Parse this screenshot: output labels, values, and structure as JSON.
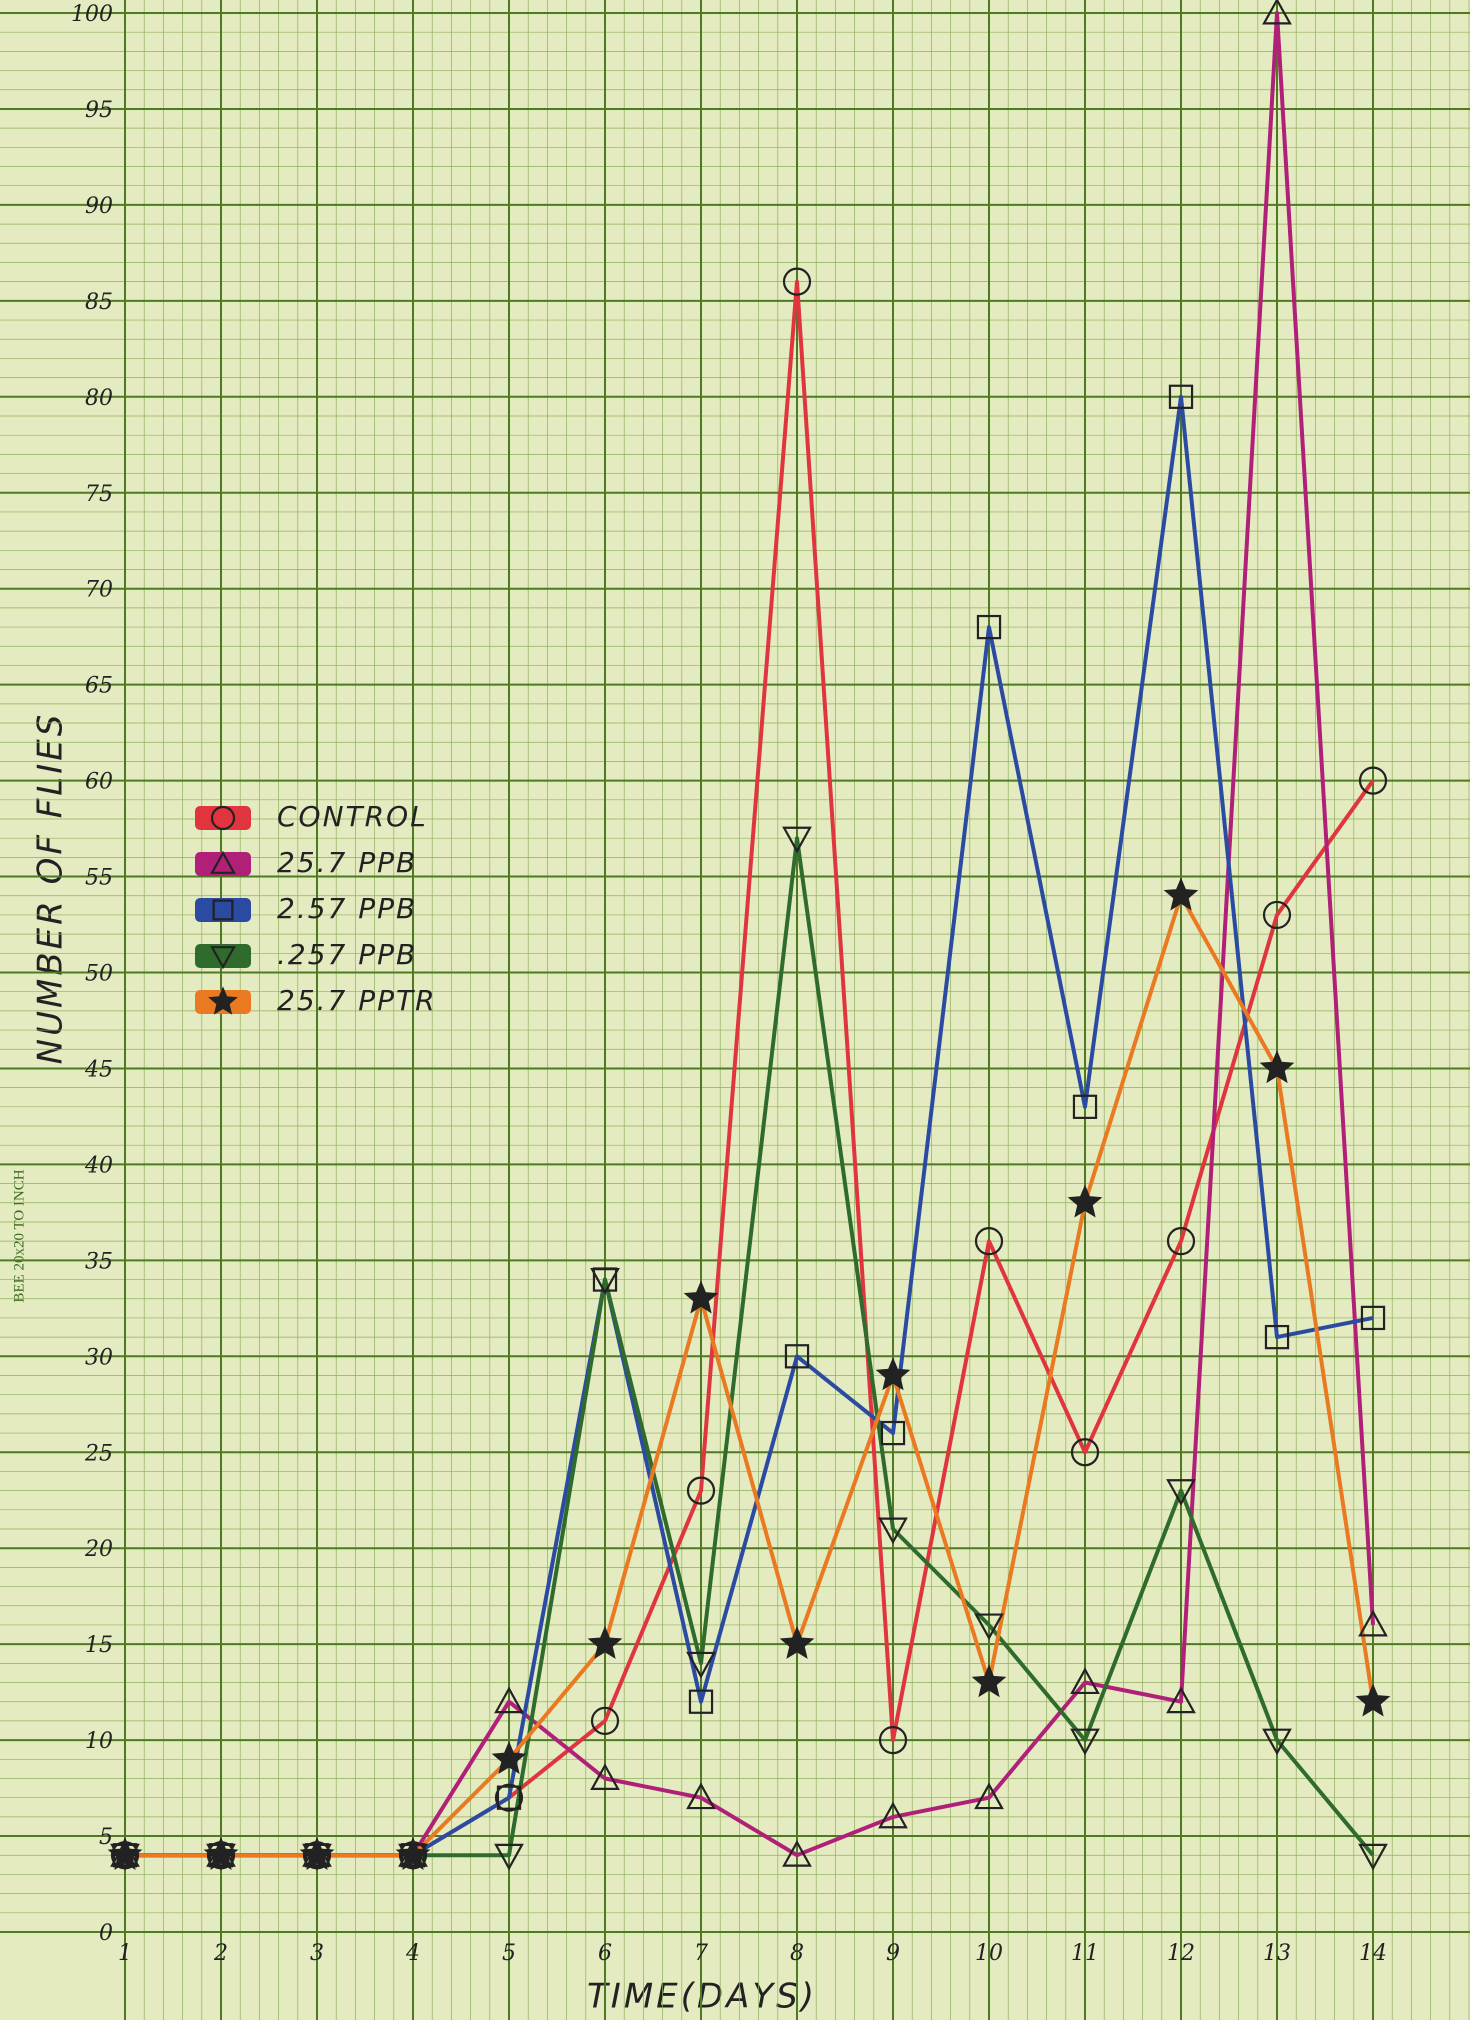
{
  "chart_data": {
    "type": "line",
    "x_label": "TIME(DAYS)",
    "y_label": "NUMBER OF FLIES",
    "paper_note": "BEE 20x20 TO INCH",
    "x": [
      1,
      2,
      3,
      4,
      5,
      6,
      7,
      8,
      9,
      10,
      11,
      12,
      13,
      14
    ],
    "xlim": [
      1,
      15
    ],
    "xticks": [
      1,
      2,
      3,
      4,
      5,
      6,
      7,
      8,
      9,
      10,
      11,
      12,
      13,
      14
    ],
    "ylim": [
      0,
      100
    ],
    "yticks": [
      0,
      5,
      10,
      15,
      20,
      25,
      30,
      35,
      40,
      45,
      50,
      55,
      60,
      65,
      70,
      75,
      80,
      85,
      90,
      95,
      100
    ],
    "grid": true,
    "series": [
      {
        "name": "CONTROL",
        "color": "#e0353f",
        "marker": "circle",
        "values": [
          4,
          4,
          4,
          4,
          7,
          11,
          23,
          86,
          10,
          36,
          25,
          36,
          53,
          60
        ]
      },
      {
        "name": "25.7 PPB",
        "color": "#b02078",
        "marker": "triangle-up",
        "values": [
          4,
          4,
          4,
          4,
          12,
          8,
          7,
          4,
          6,
          7,
          13,
          12,
          100,
          16
        ]
      },
      {
        "name": "2.57 PPB",
        "color": "#2b4ba3",
        "marker": "square",
        "values": [
          4,
          4,
          4,
          4,
          7,
          34,
          12,
          30,
          26,
          68,
          43,
          80,
          31,
          32
        ]
      },
      {
        "name": ".257 PPB",
        "color": "#2f6b2c",
        "marker": "triangle-down",
        "values": [
          4,
          4,
          4,
          4,
          4,
          34,
          14,
          57,
          21,
          16,
          10,
          23,
          10,
          4
        ]
      },
      {
        "name": "25.7 PPTR",
        "color": "#ea7a22",
        "marker": "star",
        "values": [
          4,
          4,
          4,
          4,
          9,
          15,
          33,
          15,
          29,
          13,
          38,
          54,
          45,
          12
        ]
      }
    ]
  }
}
